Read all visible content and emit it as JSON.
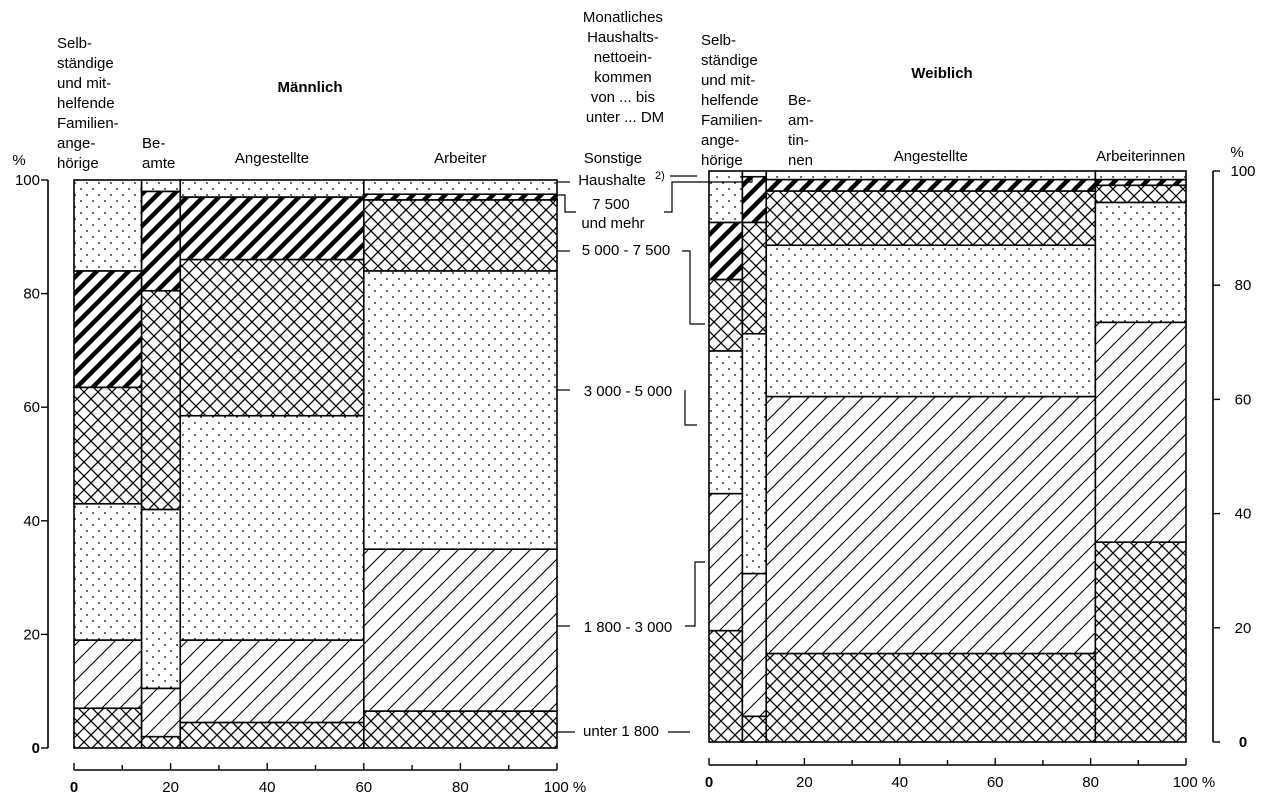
{
  "chart_data": [
    {
      "type": "bar",
      "subtype": "marimekko",
      "title": "Männlich",
      "x_unit": "100 %",
      "y_unit": "%",
      "xlim": [
        0,
        100
      ],
      "ylim": [
        0,
        100
      ],
      "x_ticks": [
        "0",
        "20",
        "40",
        "60",
        "80",
        "100 %"
      ],
      "y_ticks": [
        "0",
        "20",
        "40",
        "60",
        "80",
        "100"
      ],
      "columns": [
        {
          "label": "Selbständige und mithelfende Familienangehörige",
          "label_lines": [
            "Selb-",
            "ständige",
            "und mit-",
            "helfende",
            "Familien-",
            "ange-",
            "hörige"
          ],
          "x0": 0,
          "x1": 14,
          "segments": [
            7,
            19,
            43,
            63.5,
            84,
            100
          ]
        },
        {
          "label": "Beamte",
          "label_lines": [
            "Be-",
            "amte"
          ],
          "x0": 14,
          "x1": 22,
          "segments": [
            2,
            10.5,
            42,
            80.5,
            98,
            100
          ]
        },
        {
          "label": "Angestellte",
          "label_lines": [
            "Angestellte"
          ],
          "x0": 22,
          "x1": 60,
          "segments": [
            4.5,
            19,
            58.5,
            86,
            97,
            100
          ]
        },
        {
          "label": "Arbeiter",
          "label_lines": [
            "Arbeiter"
          ],
          "x0": 60,
          "x1": 100,
          "segments": [
            6.5,
            35,
            84,
            96.5,
            97.5,
            100
          ]
        }
      ]
    },
    {
      "type": "bar",
      "subtype": "marimekko",
      "title": "Weiblich",
      "x_unit": "100 %",
      "y_unit": "%",
      "xlim": [
        0,
        100
      ],
      "ylim": [
        0,
        100
      ],
      "x_ticks": [
        "0",
        "20",
        "40",
        "60",
        "80",
        "100 %"
      ],
      "y_ticks": [
        "0",
        "20",
        "40",
        "60",
        "80",
        "100"
      ],
      "columns": [
        {
          "label": "Selbständige und mithelfende Familienangehörige",
          "label_lines": [
            "Selb-",
            "ständige",
            "und mit-",
            "helfende",
            "Familien-",
            "ange-",
            "hörige"
          ],
          "x0": 0,
          "x1": 7,
          "segments": [
            19.5,
            43.5,
            68.5,
            81,
            91,
            100
          ]
        },
        {
          "label": "Beamtinnen",
          "label_lines": [
            "Be-",
            "am-",
            "tin-",
            "nen"
          ],
          "x0": 7,
          "x1": 12,
          "segments": [
            4.5,
            29.5,
            71.5,
            91,
            99,
            100
          ]
        },
        {
          "label": "Angestellte",
          "label_lines": [
            "Angestellte"
          ],
          "x0": 12,
          "x1": 81,
          "segments": [
            15.5,
            60.5,
            87,
            96.5,
            98.5,
            100
          ]
        },
        {
          "label": "Arbeiterinnen",
          "label_lines": [
            "Arbeiterinnen"
          ],
          "x0": 81,
          "x1": 100,
          "segments": [
            35,
            73.5,
            94.5,
            97.5,
            98.5,
            100
          ]
        }
      ]
    }
  ],
  "categories": [
    {
      "lines": [
        "unter 1 800"
      ],
      "pattern": "crosshatch"
    },
    {
      "lines": [
        "1 800 - 3 000"
      ],
      "pattern": "diagonal-thin"
    },
    {
      "lines": [
        "3 000 - 5 000"
      ],
      "pattern": "dots"
    },
    {
      "lines": [
        "5 000 - 7 500"
      ],
      "pattern": "crosshatch"
    },
    {
      "lines": [
        "7 500",
        "und mehr"
      ],
      "pattern": "diagonal-thick"
    },
    {
      "lines": [
        "Sonstige",
        "Haushalte"
      ],
      "superscript": "2)",
      "pattern": "dots"
    }
  ],
  "center_header": [
    "Monatliches",
    "Haushalts-",
    "nettoein-",
    "kommen",
    "von ... bis",
    "unter ... DM"
  ],
  "y_axis_unit": "%"
}
